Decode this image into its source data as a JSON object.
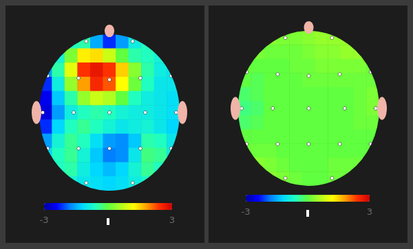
{
  "chart_data": [
    {
      "type": "heatmap",
      "x": [
        -0.909,
        -0.727,
        -0.545,
        -0.364,
        -0.182,
        0,
        0.182,
        0.364,
        0.545,
        0.727,
        0.909
      ],
      "y": [
        0.909,
        0.727,
        0.545,
        0.364,
        0.182,
        0,
        -0.182,
        -0.364,
        -0.545,
        -0.727,
        -0.909
      ],
      "cells": [
        [
          null,
          null,
          -0.6,
          -0.5,
          -1.5,
          -2.2,
          -1.6,
          -0.9,
          -0.6,
          null,
          null
        ],
        [
          null,
          -0.8,
          0.2,
          1.3,
          1.4,
          0.8,
          0.0,
          -0.5,
          -0.6,
          -0.8,
          null
        ],
        [
          -1.6,
          -0.5,
          1.0,
          2.4,
          2.7,
          2.4,
          1.5,
          0.3,
          -0.5,
          -0.9,
          -1.0
        ],
        [
          -2.2,
          -0.9,
          0.4,
          1.8,
          2.5,
          2.2,
          1.2,
          0.1,
          -0.6,
          -1.0,
          -1.0
        ],
        [
          -2.5,
          -1.3,
          -0.5,
          0.4,
          0.8,
          0.6,
          0.0,
          -0.6,
          -0.9,
          -1.0,
          -1.1
        ],
        [
          -2.6,
          -1.6,
          -0.9,
          -0.6,
          -0.5,
          -0.6,
          -0.8,
          -0.9,
          -0.9,
          -1.0,
          -1.1
        ],
        [
          -2.2,
          -1.2,
          -0.6,
          -0.4,
          -0.6,
          -0.8,
          -1.0,
          -0.9,
          -0.8,
          -1.0,
          -1.2
        ],
        [
          -1.6,
          -0.8,
          -0.4,
          -0.6,
          -1.1,
          -1.6,
          -1.7,
          -1.3,
          -0.5,
          -0.6,
          -1.0
        ],
        [
          -1.2,
          -0.6,
          -0.4,
          -0.8,
          -1.3,
          -1.8,
          -1.7,
          -1.0,
          -0.3,
          -0.4,
          -0.9
        ],
        [
          null,
          -0.6,
          -0.5,
          -0.9,
          -1.2,
          -1.4,
          -1.2,
          -0.8,
          -0.4,
          -0.6,
          null
        ],
        [
          null,
          null,
          -0.8,
          -1.0,
          -1.1,
          -1.2,
          -1.1,
          -0.9,
          -0.7,
          null,
          null
        ]
      ],
      "xlim": [
        -1,
        1
      ],
      "ylim": [
        -1,
        1
      ],
      "electrodes": [
        [
          -0.33,
          0.91
        ],
        [
          0.33,
          0.91
        ],
        [
          -0.88,
          0.47
        ],
        [
          -0.44,
          0.44
        ],
        [
          0,
          0.42
        ],
        [
          0.44,
          0.44
        ],
        [
          0.88,
          0.47
        ],
        [
          -0.95,
          0
        ],
        [
          -0.51,
          0
        ],
        [
          0,
          0
        ],
        [
          0.51,
          0
        ],
        [
          0.95,
          0
        ],
        [
          -0.88,
          -0.46
        ],
        [
          -0.44,
          -0.46
        ],
        [
          0,
          -0.46
        ],
        [
          0.44,
          -0.46
        ],
        [
          0.88,
          -0.46
        ],
        [
          -0.33,
          -0.9
        ],
        [
          0.33,
          -0.9
        ]
      ],
      "marker": "circle",
      "colorbar": {
        "range": [
          -3,
          3
        ],
        "ticks": [
          -3,
          3
        ]
      },
      "tick_labels": false,
      "grid": false
    },
    {
      "type": "heatmap",
      "x": [
        -0.909,
        -0.727,
        -0.545,
        -0.364,
        -0.182,
        0,
        0.182,
        0.364,
        0.545,
        0.727,
        0.909
      ],
      "y": [
        0.909,
        0.727,
        0.545,
        0.364,
        0.182,
        0,
        -0.182,
        -0.364,
        -0.545,
        -0.727,
        -0.909
      ],
      "cells": [
        [
          null,
          null,
          0.3,
          0.2,
          0.2,
          0.3,
          0.4,
          0.4,
          0.4,
          null,
          null
        ],
        [
          null,
          0.2,
          0.1,
          0.1,
          0.1,
          0.2,
          0.3,
          0.3,
          0.4,
          0.4,
          null
        ],
        [
          0.1,
          0.0,
          0.0,
          0.0,
          0.1,
          0.1,
          0.2,
          0.2,
          0.2,
          0.2,
          0.1
        ],
        [
          0.0,
          -0.1,
          0.0,
          0.0,
          0.0,
          0.1,
          0.1,
          0.1,
          0.1,
          0.1,
          0.1
        ],
        [
          -0.2,
          -0.1,
          0.0,
          0.0,
          0.0,
          0.0,
          0.0,
          0.0,
          0.0,
          0.1,
          0.2
        ],
        [
          -0.3,
          -0.2,
          0.0,
          0.0,
          0.0,
          0.0,
          0.0,
          0.0,
          0.0,
          0.1,
          0.2
        ],
        [
          -0.2,
          -0.1,
          0.0,
          0.0,
          0.0,
          0.0,
          0.0,
          0.0,
          0.0,
          0.1,
          0.1
        ],
        [
          0.0,
          0.0,
          0.0,
          0.0,
          0.0,
          0.0,
          0.0,
          0.0,
          0.0,
          0.0,
          0.0
        ],
        [
          0.1,
          0.1,
          0.1,
          0.0,
          0.0,
          0.0,
          0.0,
          0.0,
          0.0,
          0.0,
          0.0
        ],
        [
          null,
          0.3,
          0.2,
          0.1,
          0.0,
          0.0,
          0.0,
          0.1,
          0.1,
          0.1,
          null
        ],
        [
          null,
          null,
          0.3,
          0.2,
          0.1,
          0.0,
          0.0,
          0.1,
          0.1,
          null,
          null
        ]
      ],
      "xlim": [
        -1,
        1
      ],
      "ylim": [
        -1,
        1
      ],
      "electrodes": [
        [
          -0.33,
          0.91
        ],
        [
          0.33,
          0.91
        ],
        [
          -0.88,
          0.47
        ],
        [
          -0.44,
          0.44
        ],
        [
          0,
          0.42
        ],
        [
          0.44,
          0.44
        ],
        [
          0.88,
          0.47
        ],
        [
          -0.95,
          0
        ],
        [
          -0.51,
          0
        ],
        [
          0,
          0
        ],
        [
          0.51,
          0
        ],
        [
          0.95,
          0
        ],
        [
          -0.88,
          -0.46
        ],
        [
          -0.44,
          -0.46
        ],
        [
          0,
          -0.46
        ],
        [
          0.44,
          -0.46
        ],
        [
          0.88,
          -0.46
        ],
        [
          -0.33,
          -0.9
        ],
        [
          0.33,
          -0.9
        ]
      ],
      "marker": "circle",
      "colorbar": {
        "range": [
          -3,
          3
        ],
        "ticks": [
          -3,
          3
        ]
      },
      "tick_labels": false,
      "grid": false
    }
  ]
}
